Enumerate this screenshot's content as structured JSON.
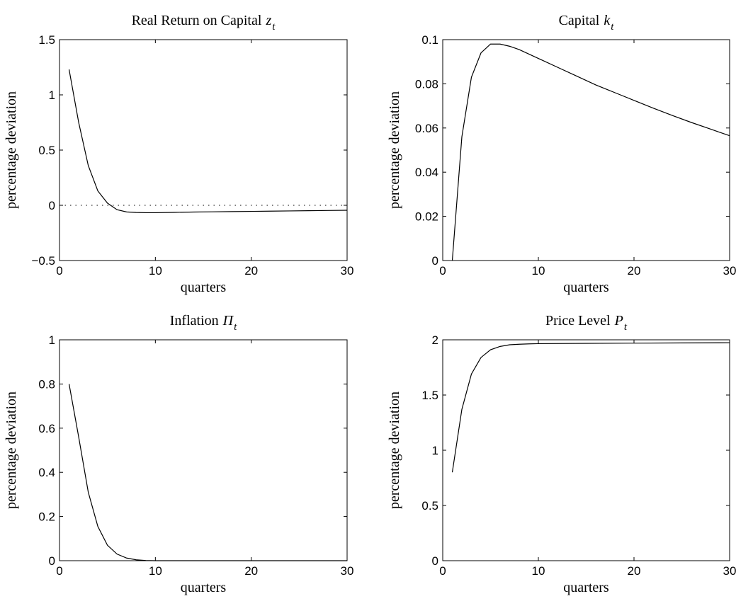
{
  "chart_data": [
    {
      "type": "line",
      "title": "Real Return on Capital",
      "title_var": "z",
      "title_sub": "t",
      "xlabel": "quarters",
      "ylabel": "percentage deviation",
      "xlim": [
        0,
        30
      ],
      "ylim": [
        -0.5,
        1.5
      ],
      "xticks": [
        "0",
        "10",
        "20",
        "30"
      ],
      "yticks": [
        "−0.5",
        "0",
        "0.5",
        "1",
        "1.5"
      ],
      "ytick_values": [
        -0.5,
        0,
        0.5,
        1,
        1.5
      ],
      "zero_line": "dotted",
      "grid": false,
      "series": [
        {
          "x": [
            1,
            2,
            3,
            4,
            5,
            6,
            7,
            8,
            9,
            10,
            12,
            14,
            16,
            18,
            20,
            22,
            24,
            26,
            28,
            30
          ],
          "y": [
            1.23,
            0.75,
            0.36,
            0.13,
            0.02,
            -0.04,
            -0.06,
            -0.065,
            -0.067,
            -0.067,
            -0.064,
            -0.061,
            -0.059,
            -0.057,
            -0.055,
            -0.053,
            -0.051,
            -0.049,
            -0.047,
            -0.045
          ]
        }
      ]
    },
    {
      "type": "line",
      "title": "Capital",
      "title_var": "k",
      "title_sub": "t",
      "xlabel": "quarters",
      "ylabel": "percentage deviation",
      "xlim": [
        0,
        30
      ],
      "ylim": [
        0,
        0.1
      ],
      "xticks": [
        "0",
        "10",
        "20",
        "30"
      ],
      "yticks": [
        "0",
        "0.02",
        "0.04",
        "0.06",
        "0.08",
        "0.1"
      ],
      "ytick_values": [
        0,
        0.02,
        0.04,
        0.06,
        0.08,
        0.1
      ],
      "grid": false,
      "series": [
        {
          "x": [
            1,
            2,
            3,
            4,
            5,
            6,
            7,
            8,
            10,
            12,
            14,
            16,
            18,
            20,
            22,
            24,
            26,
            28,
            30
          ],
          "y": [
            0,
            0.056,
            0.083,
            0.094,
            0.098,
            0.098,
            0.097,
            0.0955,
            0.0915,
            0.0875,
            0.0835,
            0.0795,
            0.076,
            0.0725,
            0.069,
            0.0657,
            0.0625,
            0.0595,
            0.0565
          ]
        }
      ]
    },
    {
      "type": "line",
      "title": "Inflation",
      "title_var": "Π",
      "title_sub": "t",
      "xlabel": "quarters",
      "ylabel": "percentage deviation",
      "xlim": [
        0,
        30
      ],
      "ylim": [
        0,
        1
      ],
      "xticks": [
        "0",
        "10",
        "20",
        "30"
      ],
      "yticks": [
        "0",
        "0.2",
        "0.4",
        "0.6",
        "0.8",
        "1"
      ],
      "ytick_values": [
        0,
        0.2,
        0.4,
        0.6,
        0.8,
        1
      ],
      "grid": false,
      "series": [
        {
          "x": [
            1,
            2,
            3,
            4,
            5,
            6,
            7,
            8,
            9,
            10,
            12,
            15,
            20,
            25,
            30
          ],
          "y": [
            0.8,
            0.56,
            0.31,
            0.155,
            0.07,
            0.03,
            0.012,
            0.004,
            0.001,
            0.0,
            0.0,
            0.0,
            0.0,
            0.0,
            0.0
          ]
        }
      ]
    },
    {
      "type": "line",
      "title": "Price Level",
      "title_var": "P",
      "title_sub": "t",
      "xlabel": "quarters",
      "ylabel": "percentage deviation",
      "xlim": [
        0,
        30
      ],
      "ylim": [
        0,
        2
      ],
      "xticks": [
        "0",
        "10",
        "20",
        "30"
      ],
      "yticks": [
        "0",
        "0.5",
        "1",
        "1.5",
        "2"
      ],
      "ytick_values": [
        0,
        0.5,
        1,
        1.5,
        2
      ],
      "grid": false,
      "series": [
        {
          "x": [
            1,
            2,
            3,
            4,
            5,
            6,
            7,
            8,
            9,
            10,
            15,
            20,
            25,
            30
          ],
          "y": [
            0.8,
            1.37,
            1.69,
            1.84,
            1.91,
            1.94,
            1.955,
            1.96,
            1.963,
            1.965,
            1.968,
            1.97,
            1.972,
            1.974
          ]
        }
      ]
    }
  ]
}
